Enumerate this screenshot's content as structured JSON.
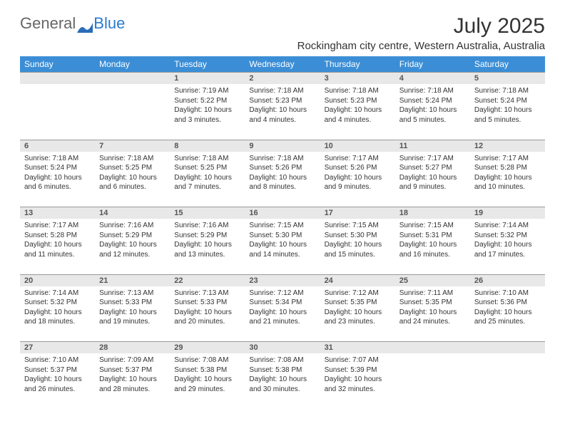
{
  "logo": {
    "text1": "General",
    "text2": "Blue"
  },
  "title": "July 2025",
  "location": "Rockingham city centre, Western Australia, Australia",
  "colors": {
    "header_bg": "#3b8ed6",
    "daynum_bg": "#e8e8e8",
    "text": "#333333"
  },
  "days": [
    "Sunday",
    "Monday",
    "Tuesday",
    "Wednesday",
    "Thursday",
    "Friday",
    "Saturday"
  ],
  "weeks": [
    [
      null,
      null,
      {
        "n": "1",
        "sr": "Sunrise: 7:19 AM",
        "ss": "Sunset: 5:22 PM",
        "dl": "Daylight: 10 hours and 3 minutes."
      },
      {
        "n": "2",
        "sr": "Sunrise: 7:18 AM",
        "ss": "Sunset: 5:23 PM",
        "dl": "Daylight: 10 hours and 4 minutes."
      },
      {
        "n": "3",
        "sr": "Sunrise: 7:18 AM",
        "ss": "Sunset: 5:23 PM",
        "dl": "Daylight: 10 hours and 4 minutes."
      },
      {
        "n": "4",
        "sr": "Sunrise: 7:18 AM",
        "ss": "Sunset: 5:24 PM",
        "dl": "Daylight: 10 hours and 5 minutes."
      },
      {
        "n": "5",
        "sr": "Sunrise: 7:18 AM",
        "ss": "Sunset: 5:24 PM",
        "dl": "Daylight: 10 hours and 5 minutes."
      }
    ],
    [
      {
        "n": "6",
        "sr": "Sunrise: 7:18 AM",
        "ss": "Sunset: 5:24 PM",
        "dl": "Daylight: 10 hours and 6 minutes."
      },
      {
        "n": "7",
        "sr": "Sunrise: 7:18 AM",
        "ss": "Sunset: 5:25 PM",
        "dl": "Daylight: 10 hours and 6 minutes."
      },
      {
        "n": "8",
        "sr": "Sunrise: 7:18 AM",
        "ss": "Sunset: 5:25 PM",
        "dl": "Daylight: 10 hours and 7 minutes."
      },
      {
        "n": "9",
        "sr": "Sunrise: 7:18 AM",
        "ss": "Sunset: 5:26 PM",
        "dl": "Daylight: 10 hours and 8 minutes."
      },
      {
        "n": "10",
        "sr": "Sunrise: 7:17 AM",
        "ss": "Sunset: 5:26 PM",
        "dl": "Daylight: 10 hours and 9 minutes."
      },
      {
        "n": "11",
        "sr": "Sunrise: 7:17 AM",
        "ss": "Sunset: 5:27 PM",
        "dl": "Daylight: 10 hours and 9 minutes."
      },
      {
        "n": "12",
        "sr": "Sunrise: 7:17 AM",
        "ss": "Sunset: 5:28 PM",
        "dl": "Daylight: 10 hours and 10 minutes."
      }
    ],
    [
      {
        "n": "13",
        "sr": "Sunrise: 7:17 AM",
        "ss": "Sunset: 5:28 PM",
        "dl": "Daylight: 10 hours and 11 minutes."
      },
      {
        "n": "14",
        "sr": "Sunrise: 7:16 AM",
        "ss": "Sunset: 5:29 PM",
        "dl": "Daylight: 10 hours and 12 minutes."
      },
      {
        "n": "15",
        "sr": "Sunrise: 7:16 AM",
        "ss": "Sunset: 5:29 PM",
        "dl": "Daylight: 10 hours and 13 minutes."
      },
      {
        "n": "16",
        "sr": "Sunrise: 7:15 AM",
        "ss": "Sunset: 5:30 PM",
        "dl": "Daylight: 10 hours and 14 minutes."
      },
      {
        "n": "17",
        "sr": "Sunrise: 7:15 AM",
        "ss": "Sunset: 5:30 PM",
        "dl": "Daylight: 10 hours and 15 minutes."
      },
      {
        "n": "18",
        "sr": "Sunrise: 7:15 AM",
        "ss": "Sunset: 5:31 PM",
        "dl": "Daylight: 10 hours and 16 minutes."
      },
      {
        "n": "19",
        "sr": "Sunrise: 7:14 AM",
        "ss": "Sunset: 5:32 PM",
        "dl": "Daylight: 10 hours and 17 minutes."
      }
    ],
    [
      {
        "n": "20",
        "sr": "Sunrise: 7:14 AM",
        "ss": "Sunset: 5:32 PM",
        "dl": "Daylight: 10 hours and 18 minutes."
      },
      {
        "n": "21",
        "sr": "Sunrise: 7:13 AM",
        "ss": "Sunset: 5:33 PM",
        "dl": "Daylight: 10 hours and 19 minutes."
      },
      {
        "n": "22",
        "sr": "Sunrise: 7:13 AM",
        "ss": "Sunset: 5:33 PM",
        "dl": "Daylight: 10 hours and 20 minutes."
      },
      {
        "n": "23",
        "sr": "Sunrise: 7:12 AM",
        "ss": "Sunset: 5:34 PM",
        "dl": "Daylight: 10 hours and 21 minutes."
      },
      {
        "n": "24",
        "sr": "Sunrise: 7:12 AM",
        "ss": "Sunset: 5:35 PM",
        "dl": "Daylight: 10 hours and 23 minutes."
      },
      {
        "n": "25",
        "sr": "Sunrise: 7:11 AM",
        "ss": "Sunset: 5:35 PM",
        "dl": "Daylight: 10 hours and 24 minutes."
      },
      {
        "n": "26",
        "sr": "Sunrise: 7:10 AM",
        "ss": "Sunset: 5:36 PM",
        "dl": "Daylight: 10 hours and 25 minutes."
      }
    ],
    [
      {
        "n": "27",
        "sr": "Sunrise: 7:10 AM",
        "ss": "Sunset: 5:37 PM",
        "dl": "Daylight: 10 hours and 26 minutes."
      },
      {
        "n": "28",
        "sr": "Sunrise: 7:09 AM",
        "ss": "Sunset: 5:37 PM",
        "dl": "Daylight: 10 hours and 28 minutes."
      },
      {
        "n": "29",
        "sr": "Sunrise: 7:08 AM",
        "ss": "Sunset: 5:38 PM",
        "dl": "Daylight: 10 hours and 29 minutes."
      },
      {
        "n": "30",
        "sr": "Sunrise: 7:08 AM",
        "ss": "Sunset: 5:38 PM",
        "dl": "Daylight: 10 hours and 30 minutes."
      },
      {
        "n": "31",
        "sr": "Sunrise: 7:07 AM",
        "ss": "Sunset: 5:39 PM",
        "dl": "Daylight: 10 hours and 32 minutes."
      },
      null,
      null
    ]
  ]
}
